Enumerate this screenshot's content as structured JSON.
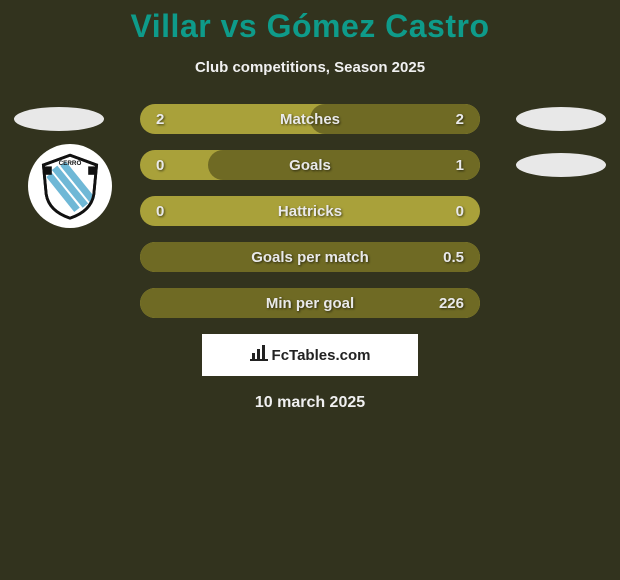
{
  "title": "Villar vs Gómez Castro",
  "subtitle": "Club competitions, Season 2025",
  "date": "10 march 2025",
  "footer_brand": "FcTables.com",
  "colors": {
    "bg": "#32331e",
    "title": "#0e9b8a",
    "bar_light": "#a9a13a",
    "bar_dark": "#6f6a24",
    "badge": "#e8e8e8",
    "text": "#e9e9e9"
  },
  "rows": [
    {
      "label": "Matches",
      "left": "2",
      "right": "2",
      "right_fill_pct": 50,
      "show_left_badge": true,
      "show_right_badge": true,
      "show_club": false
    },
    {
      "label": "Goals",
      "left": "0",
      "right": "1",
      "right_fill_pct": 80,
      "show_left_badge": false,
      "show_right_badge": true,
      "show_club": true
    },
    {
      "label": "Hattricks",
      "left": "0",
      "right": "0",
      "right_fill_pct": 0,
      "show_left_badge": false,
      "show_right_badge": false,
      "show_club": false
    },
    {
      "label": "Goals per match",
      "left": "",
      "right": "0.5",
      "right_fill_pct": 100,
      "show_left_badge": false,
      "show_right_badge": false,
      "show_club": false
    },
    {
      "label": "Min per goal",
      "left": "",
      "right": "226",
      "right_fill_pct": 100,
      "show_left_badge": false,
      "show_right_badge": false,
      "show_club": false
    }
  ]
}
